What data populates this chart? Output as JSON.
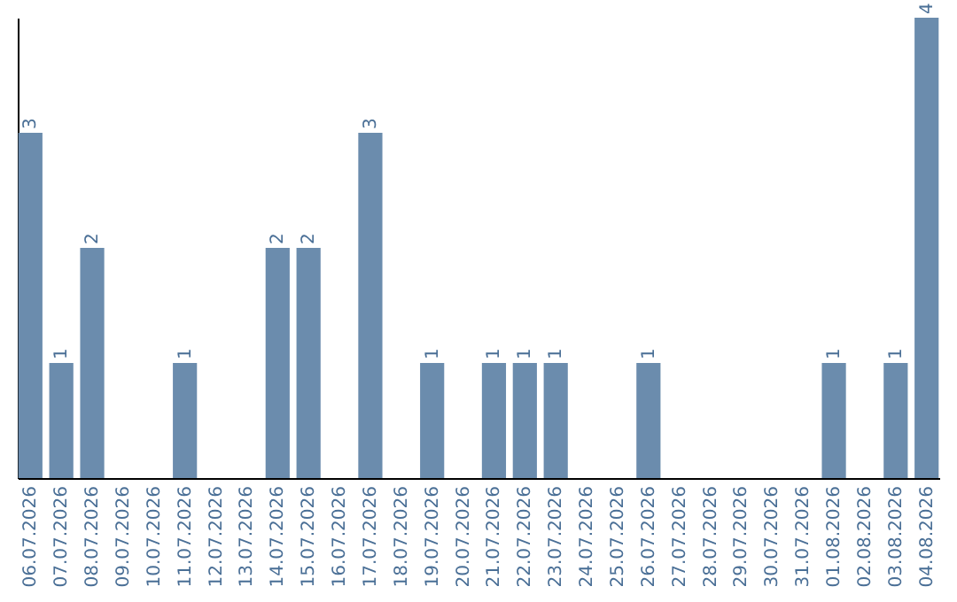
{
  "chart_data": {
    "type": "bar",
    "categories": [
      "06.07.2026",
      "07.07.2026",
      "08.07.2026",
      "09.07.2026",
      "10.07.2026",
      "11.07.2026",
      "12.07.2026",
      "13.07.2026",
      "14.07.2026",
      "15.07.2026",
      "16.07.2026",
      "17.07.2026",
      "18.07.2026",
      "19.07.2026",
      "20.07.2026",
      "21.07.2026",
      "22.07.2026",
      "23.07.2026",
      "24.07.2026",
      "25.07.2026",
      "26.07.2026",
      "27.07.2026",
      "28.07.2026",
      "29.07.2026",
      "30.07.2026",
      "31.07.2026",
      "01.08.2026",
      "02.08.2026",
      "03.08.2026",
      "04.08.2026"
    ],
    "values": [
      3,
      1,
      2,
      0,
      0,
      1,
      0,
      0,
      2,
      2,
      0,
      3,
      0,
      1,
      0,
      1,
      1,
      1,
      0,
      0,
      1,
      0,
      0,
      0,
      0,
      0,
      1,
      0,
      1,
      4
    ],
    "value_labels": [
      "3",
      "1",
      "2",
      null,
      null,
      "1",
      null,
      null,
      "2",
      "2",
      null,
      "3",
      null,
      "1",
      null,
      "1",
      "1",
      "1",
      null,
      null,
      "1",
      null,
      null,
      null,
      null,
      null,
      "1",
      null,
      "1",
      "4"
    ],
    "color": "#6b8cad",
    "grid": false,
    "tick_labels": "x"
  }
}
